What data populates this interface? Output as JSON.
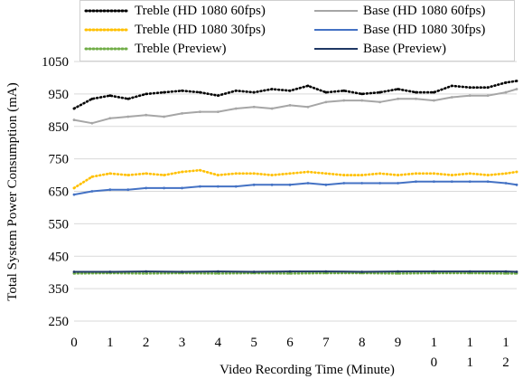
{
  "chart_data": {
    "type": "line",
    "title": "",
    "xlabel": "Video Recording Time (Minute)",
    "ylabel": "Total System Power Consumption (mA)",
    "xlim": [
      0,
      12.3
    ],
    "ylim": [
      250,
      1050
    ],
    "x_ticks": [
      "0",
      "1",
      "2",
      "3",
      "4",
      "5",
      "6",
      "7",
      "8",
      "9",
      "10",
      "11",
      "12"
    ],
    "y_ticks": [
      250,
      350,
      450,
      550,
      650,
      750,
      850,
      950,
      1050
    ],
    "grid": "horizontal",
    "legend_position": "top",
    "series": [
      {
        "name": "Treble (HD 1080 60fps)",
        "color": "#000000",
        "style": "dotted",
        "x": [
          0,
          0.5,
          1,
          1.5,
          2,
          2.5,
          3,
          3.5,
          4,
          4.5,
          5,
          5.5,
          6,
          6.5,
          7,
          7.5,
          8,
          8.5,
          9,
          9.5,
          10,
          10.5,
          11,
          11.5,
          12,
          12.3
        ],
        "values": [
          905,
          935,
          945,
          935,
          950,
          955,
          960,
          955,
          945,
          960,
          955,
          965,
          960,
          975,
          955,
          960,
          950,
          955,
          965,
          955,
          955,
          975,
          970,
          970,
          985,
          990
        ]
      },
      {
        "name": "Base (HD 1080 60fps)",
        "color": "#a6a6a6",
        "style": "solid",
        "x": [
          0,
          0.5,
          1,
          1.5,
          2,
          2.5,
          3,
          3.5,
          4,
          4.5,
          5,
          5.5,
          6,
          6.5,
          7,
          7.5,
          8,
          8.5,
          9,
          9.5,
          10,
          10.5,
          11,
          11.5,
          12,
          12.3
        ],
        "values": [
          870,
          860,
          875,
          880,
          885,
          880,
          890,
          895,
          895,
          905,
          910,
          905,
          915,
          910,
          925,
          930,
          930,
          925,
          935,
          935,
          930,
          940,
          945,
          945,
          955,
          965
        ]
      },
      {
        "name": "Treble (HD 1080 30fps)",
        "color": "#ffc000",
        "style": "dotted",
        "x": [
          0,
          0.5,
          1,
          1.5,
          2,
          2.5,
          3,
          3.5,
          4,
          4.5,
          5,
          5.5,
          6,
          6.5,
          7,
          7.5,
          8,
          8.5,
          9,
          9.5,
          10,
          10.5,
          11,
          11.5,
          12,
          12.3
        ],
        "values": [
          660,
          695,
          705,
          700,
          705,
          700,
          710,
          715,
          700,
          705,
          705,
          700,
          705,
          710,
          705,
          700,
          700,
          705,
          700,
          705,
          705,
          700,
          705,
          700,
          705,
          710
        ]
      },
      {
        "name": "Base (HD 1080 30fps)",
        "color": "#4472c4",
        "style": "solid",
        "x": [
          0,
          0.5,
          1,
          1.5,
          2,
          2.5,
          3,
          3.5,
          4,
          4.5,
          5,
          5.5,
          6,
          6.5,
          7,
          7.5,
          8,
          8.5,
          9,
          9.5,
          10,
          10.5,
          11,
          11.5,
          12,
          12.3
        ],
        "values": [
          640,
          650,
          655,
          655,
          660,
          660,
          660,
          665,
          665,
          665,
          670,
          670,
          670,
          675,
          670,
          675,
          675,
          675,
          675,
          680,
          680,
          680,
          680,
          680,
          675,
          670
        ]
      },
      {
        "name": "Treble (Preview)",
        "color": "#70ad47",
        "style": "dotted",
        "x": [
          0,
          1,
          2,
          3,
          4,
          5,
          6,
          7,
          8,
          9,
          10,
          11,
          12,
          12.3
        ],
        "values": [
          397,
          398,
          397,
          398,
          397,
          398,
          397,
          398,
          398,
          397,
          398,
          398,
          397,
          397
        ]
      },
      {
        "name": "Base (Preview)",
        "color": "#1f3864",
        "style": "solid",
        "x": [
          0,
          1,
          2,
          3,
          4,
          5,
          6,
          7,
          8,
          9,
          10,
          11,
          12,
          12.3
        ],
        "values": [
          402,
          402,
          403,
          402,
          403,
          402,
          403,
          403,
          402,
          403,
          403,
          403,
          403,
          402
        ]
      }
    ]
  }
}
